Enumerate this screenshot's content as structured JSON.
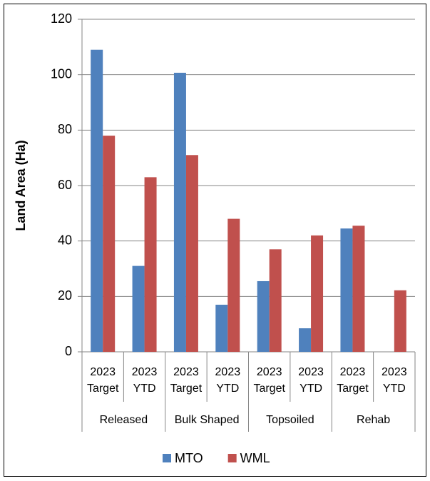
{
  "chart_data": {
    "type": "bar",
    "y_label": "Land Area (Ha)",
    "categories": [
      [
        "2023",
        "Target"
      ],
      [
        "2023",
        "YTD"
      ],
      [
        "2023",
        "Target"
      ],
      [
        "2023",
        "YTD"
      ],
      [
        "2023",
        "Target"
      ],
      [
        "2023",
        "YTD"
      ],
      [
        "2023",
        "Target"
      ],
      [
        "2023",
        "YTD"
      ]
    ],
    "groups": [
      "Released",
      "Bulk Shaped",
      "Topsoiled",
      "Rehab"
    ],
    "series": [
      {
        "name": "MTO",
        "color": "#4f81bd",
        "values": [
          109,
          31,
          100.7,
          17,
          25.5,
          8.5,
          44.5,
          0
        ]
      },
      {
        "name": "WML",
        "color": "#c0504d",
        "values": [
          78,
          63,
          71,
          48,
          37,
          42,
          45.5,
          22.2
        ]
      }
    ],
    "ylim": [
      0,
      120
    ],
    "yticks": [
      0,
      20,
      40,
      60,
      80,
      100,
      120
    ],
    "grid": true,
    "legend": "bottom"
  }
}
